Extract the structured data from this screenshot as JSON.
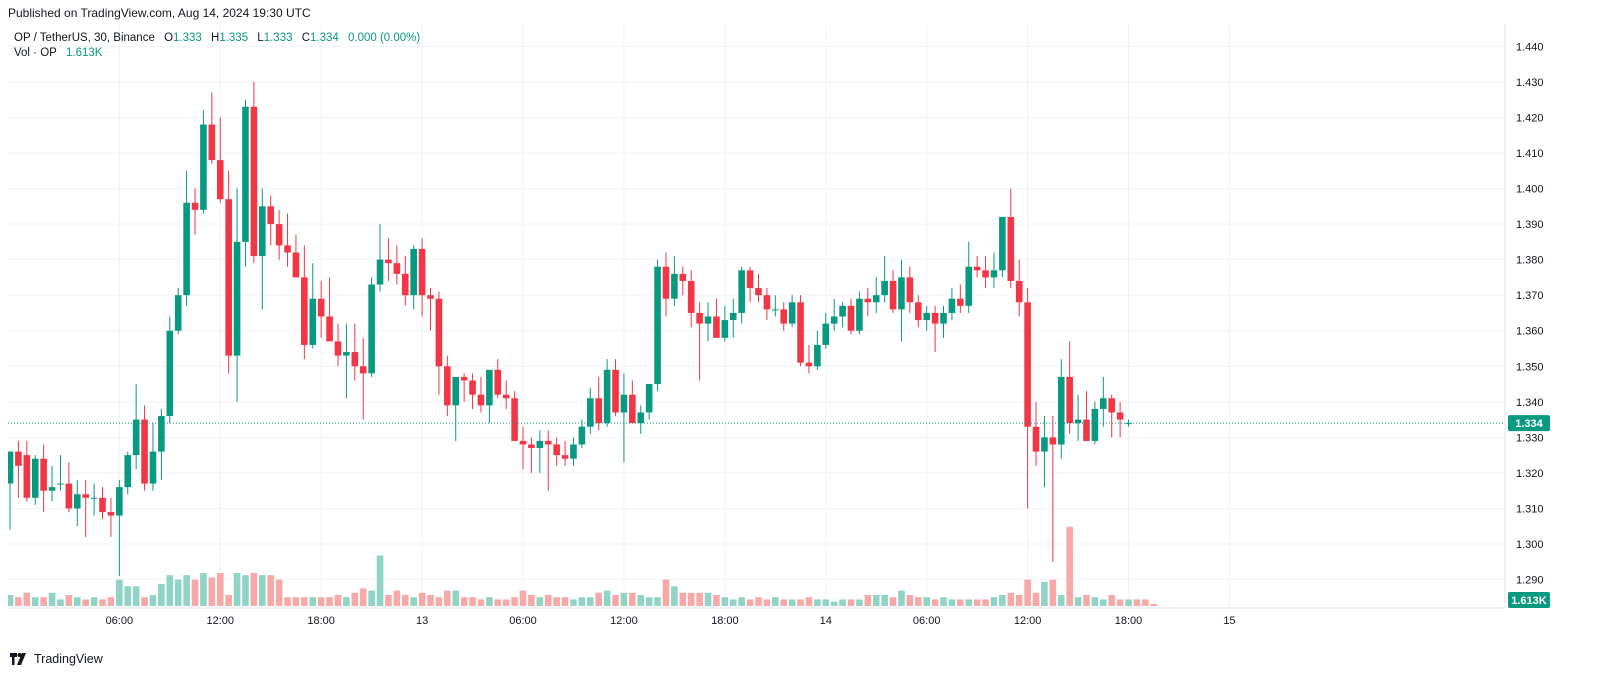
{
  "header": {
    "published_text": "Published on TradingView.com, Aug 14, 2024 19:30 UTC"
  },
  "legend": {
    "symbol_line": "OP / TetherUS, 30, Binance",
    "open_label": "O",
    "open": "1.333",
    "high_label": "H",
    "high": "1.335",
    "low_label": "L",
    "low": "1.333",
    "close_label": "C",
    "close": "1.334",
    "change": "0.000 (0.00%)",
    "volume_label": "Vol · OP",
    "volume": "1.613K"
  },
  "footer": {
    "brand": "TradingView"
  },
  "colors": {
    "up": "#089981",
    "down": "#f23645",
    "up_volume": "#8fd4c7",
    "down_volume": "#f7a9a7",
    "grid": "#f0f3fa",
    "axis_text": "#131722",
    "price_line": "#089981"
  },
  "chart_data": {
    "type": "candlestick",
    "interval": "30",
    "symbol": "OP / TetherUS",
    "exchange": "Binance",
    "ylim": [
      1.282,
      1.446
    ],
    "y_ticks": [
      "1.290",
      "1.300",
      "1.310",
      "1.320",
      "1.330",
      "1.340",
      "1.350",
      "1.360",
      "1.370",
      "1.380",
      "1.390",
      "1.400",
      "1.410",
      "1.420",
      "1.430",
      "1.440"
    ],
    "x_ticks": [
      {
        "bar": 13,
        "label": "06:00"
      },
      {
        "bar": 25,
        "label": "12:00"
      },
      {
        "bar": 37,
        "label": "18:00"
      },
      {
        "bar": 49,
        "label": "13"
      },
      {
        "bar": 61,
        "label": "06:00"
      },
      {
        "bar": 73,
        "label": "12:00"
      },
      {
        "bar": 85,
        "label": "18:00"
      },
      {
        "bar": 97,
        "label": "14"
      },
      {
        "bar": 109,
        "label": "06:00"
      },
      {
        "bar": 121,
        "label": "12:00"
      },
      {
        "bar": 133,
        "label": "18:00"
      },
      {
        "bar": 145,
        "label": "15"
      }
    ],
    "last_price": 1.334,
    "last_price_label": "1.334",
    "last_volume_label": "1.613K",
    "grid": true,
    "candles": [
      {
        "o": 1.317,
        "h": 1.325,
        "l": 1.304,
        "c": 1.326
      },
      {
        "o": 1.326,
        "h": 1.329,
        "l": 1.313,
        "c": 1.322
      },
      {
        "o": 1.325,
        "h": 1.329,
        "l": 1.312,
        "c": 1.313
      },
      {
        "o": 1.313,
        "h": 1.325,
        "l": 1.311,
        "c": 1.324
      },
      {
        "o": 1.324,
        "h": 1.328,
        "l": 1.309,
        "c": 1.315
      },
      {
        "o": 1.315,
        "h": 1.322,
        "l": 1.312,
        "c": 1.316
      },
      {
        "o": 1.317,
        "h": 1.325,
        "l": 1.315,
        "c": 1.317
      },
      {
        "o": 1.317,
        "h": 1.323,
        "l": 1.309,
        "c": 1.31
      },
      {
        "o": 1.31,
        "h": 1.318,
        "l": 1.305,
        "c": 1.314
      },
      {
        "o": 1.314,
        "h": 1.318,
        "l": 1.302,
        "c": 1.313
      },
      {
        "o": 1.313,
        "h": 1.317,
        "l": 1.308,
        "c": 1.313
      },
      {
        "o": 1.313,
        "h": 1.316,
        "l": 1.307,
        "c": 1.309
      },
      {
        "o": 1.309,
        "h": 1.313,
        "l": 1.302,
        "c": 1.308
      },
      {
        "o": 1.308,
        "h": 1.318,
        "l": 1.291,
        "c": 1.316
      },
      {
        "o": 1.316,
        "h": 1.326,
        "l": 1.314,
        "c": 1.325
      },
      {
        "o": 1.325,
        "h": 1.345,
        "l": 1.321,
        "c": 1.335
      },
      {
        "o": 1.335,
        "h": 1.339,
        "l": 1.315,
        "c": 1.317
      },
      {
        "o": 1.317,
        "h": 1.334,
        "l": 1.315,
        "c": 1.326
      },
      {
        "o": 1.326,
        "h": 1.338,
        "l": 1.318,
        "c": 1.336
      },
      {
        "o": 1.336,
        "h": 1.364,
        "l": 1.334,
        "c": 1.36
      },
      {
        "o": 1.36,
        "h": 1.372,
        "l": 1.359,
        "c": 1.37
      },
      {
        "o": 1.37,
        "h": 1.405,
        "l": 1.367,
        "c": 1.396
      },
      {
        "o": 1.396,
        "h": 1.4,
        "l": 1.387,
        "c": 1.394
      },
      {
        "o": 1.394,
        "h": 1.422,
        "l": 1.393,
        "c": 1.418
      },
      {
        "o": 1.418,
        "h": 1.427,
        "l": 1.407,
        "c": 1.408
      },
      {
        "o": 1.408,
        "h": 1.42,
        "l": 1.396,
        "c": 1.397
      },
      {
        "o": 1.397,
        "h": 1.405,
        "l": 1.348,
        "c": 1.353
      },
      {
        "o": 1.353,
        "h": 1.4,
        "l": 1.34,
        "c": 1.385
      },
      {
        "o": 1.385,
        "h": 1.425,
        "l": 1.378,
        "c": 1.423
      },
      {
        "o": 1.423,
        "h": 1.43,
        "l": 1.379,
        "c": 1.381
      },
      {
        "o": 1.381,
        "h": 1.4,
        "l": 1.366,
        "c": 1.395
      },
      {
        "o": 1.395,
        "h": 1.398,
        "l": 1.384,
        "c": 1.39
      },
      {
        "o": 1.39,
        "h": 1.394,
        "l": 1.38,
        "c": 1.384
      },
      {
        "o": 1.384,
        "h": 1.393,
        "l": 1.378,
        "c": 1.382
      },
      {
        "o": 1.382,
        "h": 1.387,
        "l": 1.376,
        "c": 1.375
      },
      {
        "o": 1.375,
        "h": 1.384,
        "l": 1.352,
        "c": 1.356
      },
      {
        "o": 1.356,
        "h": 1.379,
        "l": 1.355,
        "c": 1.369
      },
      {
        "o": 1.369,
        "h": 1.374,
        "l": 1.358,
        "c": 1.364
      },
      {
        "o": 1.364,
        "h": 1.375,
        "l": 1.357,
        "c": 1.357
      },
      {
        "o": 1.357,
        "h": 1.362,
        "l": 1.35,
        "c": 1.353
      },
      {
        "o": 1.353,
        "h": 1.362,
        "l": 1.341,
        "c": 1.354
      },
      {
        "o": 1.354,
        "h": 1.362,
        "l": 1.346,
        "c": 1.35
      },
      {
        "o": 1.35,
        "h": 1.358,
        "l": 1.335,
        "c": 1.348
      },
      {
        "o": 1.348,
        "h": 1.375,
        "l": 1.347,
        "c": 1.373
      },
      {
        "o": 1.373,
        "h": 1.39,
        "l": 1.371,
        "c": 1.38
      },
      {
        "o": 1.38,
        "h": 1.386,
        "l": 1.374,
        "c": 1.379
      },
      {
        "o": 1.379,
        "h": 1.384,
        "l": 1.373,
        "c": 1.376
      },
      {
        "o": 1.376,
        "h": 1.381,
        "l": 1.367,
        "c": 1.37
      },
      {
        "o": 1.37,
        "h": 1.384,
        "l": 1.366,
        "c": 1.383
      },
      {
        "o": 1.383,
        "h": 1.386,
        "l": 1.364,
        "c": 1.37
      },
      {
        "o": 1.37,
        "h": 1.372,
        "l": 1.36,
        "c": 1.369
      },
      {
        "o": 1.369,
        "h": 1.371,
        "l": 1.342,
        "c": 1.35
      },
      {
        "o": 1.35,
        "h": 1.353,
        "l": 1.336,
        "c": 1.339
      },
      {
        "o": 1.339,
        "h": 1.347,
        "l": 1.329,
        "c": 1.347
      },
      {
        "o": 1.347,
        "h": 1.348,
        "l": 1.34,
        "c": 1.346
      },
      {
        "o": 1.346,
        "h": 1.348,
        "l": 1.338,
        "c": 1.342
      },
      {
        "o": 1.342,
        "h": 1.347,
        "l": 1.337,
        "c": 1.339
      },
      {
        "o": 1.339,
        "h": 1.348,
        "l": 1.334,
        "c": 1.349
      },
      {
        "o": 1.349,
        "h": 1.352,
        "l": 1.341,
        "c": 1.342
      },
      {
        "o": 1.342,
        "h": 1.346,
        "l": 1.338,
        "c": 1.341
      },
      {
        "o": 1.341,
        "h": 1.343,
        "l": 1.329,
        "c": 1.329
      },
      {
        "o": 1.329,
        "h": 1.333,
        "l": 1.321,
        "c": 1.328
      },
      {
        "o": 1.328,
        "h": 1.33,
        "l": 1.32,
        "c": 1.327
      },
      {
        "o": 1.327,
        "h": 1.332,
        "l": 1.32,
        "c": 1.329
      },
      {
        "o": 1.329,
        "h": 1.332,
        "l": 1.315,
        "c": 1.328
      },
      {
        "o": 1.328,
        "h": 1.33,
        "l": 1.322,
        "c": 1.325
      },
      {
        "o": 1.325,
        "h": 1.329,
        "l": 1.322,
        "c": 1.324
      },
      {
        "o": 1.324,
        "h": 1.33,
        "l": 1.322,
        "c": 1.328
      },
      {
        "o": 1.328,
        "h": 1.335,
        "l": 1.327,
        "c": 1.333
      },
      {
        "o": 1.333,
        "h": 1.344,
        "l": 1.331,
        "c": 1.341
      },
      {
        "o": 1.341,
        "h": 1.347,
        "l": 1.332,
        "c": 1.334
      },
      {
        "o": 1.334,
        "h": 1.352,
        "l": 1.333,
        "c": 1.349
      },
      {
        "o": 1.349,
        "h": 1.352,
        "l": 1.336,
        "c": 1.337
      },
      {
        "o": 1.337,
        "h": 1.348,
        "l": 1.323,
        "c": 1.342
      },
      {
        "o": 1.342,
        "h": 1.346,
        "l": 1.335,
        "c": 1.334
      },
      {
        "o": 1.334,
        "h": 1.339,
        "l": 1.331,
        "c": 1.337
      },
      {
        "o": 1.337,
        "h": 1.345,
        "l": 1.335,
        "c": 1.345
      },
      {
        "o": 1.345,
        "h": 1.38,
        "l": 1.343,
        "c": 1.378
      },
      {
        "o": 1.378,
        "h": 1.382,
        "l": 1.364,
        "c": 1.369
      },
      {
        "o": 1.369,
        "h": 1.381,
        "l": 1.367,
        "c": 1.376
      },
      {
        "o": 1.376,
        "h": 1.378,
        "l": 1.37,
        "c": 1.374
      },
      {
        "o": 1.374,
        "h": 1.377,
        "l": 1.361,
        "c": 1.365
      },
      {
        "o": 1.365,
        "h": 1.368,
        "l": 1.346,
        "c": 1.362
      },
      {
        "o": 1.362,
        "h": 1.368,
        "l": 1.357,
        "c": 1.364
      },
      {
        "o": 1.364,
        "h": 1.369,
        "l": 1.358,
        "c": 1.358
      },
      {
        "o": 1.358,
        "h": 1.367,
        "l": 1.357,
        "c": 1.363
      },
      {
        "o": 1.363,
        "h": 1.369,
        "l": 1.358,
        "c": 1.365
      },
      {
        "o": 1.365,
        "h": 1.378,
        "l": 1.362,
        "c": 1.377
      },
      {
        "o": 1.377,
        "h": 1.378,
        "l": 1.368,
        "c": 1.372
      },
      {
        "o": 1.372,
        "h": 1.376,
        "l": 1.368,
        "c": 1.37
      },
      {
        "o": 1.37,
        "h": 1.372,
        "l": 1.363,
        "c": 1.366
      },
      {
        "o": 1.366,
        "h": 1.37,
        "l": 1.364,
        "c": 1.366
      },
      {
        "o": 1.366,
        "h": 1.368,
        "l": 1.36,
        "c": 1.362
      },
      {
        "o": 1.362,
        "h": 1.37,
        "l": 1.361,
        "c": 1.368
      },
      {
        "o": 1.368,
        "h": 1.37,
        "l": 1.35,
        "c": 1.351
      },
      {
        "o": 1.351,
        "h": 1.356,
        "l": 1.348,
        "c": 1.35
      },
      {
        "o": 1.35,
        "h": 1.36,
        "l": 1.349,
        "c": 1.356
      },
      {
        "o": 1.356,
        "h": 1.365,
        "l": 1.355,
        "c": 1.362
      },
      {
        "o": 1.362,
        "h": 1.369,
        "l": 1.36,
        "c": 1.364
      },
      {
        "o": 1.364,
        "h": 1.368,
        "l": 1.361,
        "c": 1.367
      },
      {
        "o": 1.367,
        "h": 1.369,
        "l": 1.359,
        "c": 1.36
      },
      {
        "o": 1.36,
        "h": 1.371,
        "l": 1.359,
        "c": 1.369
      },
      {
        "o": 1.369,
        "h": 1.372,
        "l": 1.364,
        "c": 1.368
      },
      {
        "o": 1.368,
        "h": 1.375,
        "l": 1.365,
        "c": 1.37
      },
      {
        "o": 1.37,
        "h": 1.381,
        "l": 1.368,
        "c": 1.374
      },
      {
        "o": 1.374,
        "h": 1.377,
        "l": 1.365,
        "c": 1.366
      },
      {
        "o": 1.366,
        "h": 1.38,
        "l": 1.357,
        "c": 1.375
      },
      {
        "o": 1.375,
        "h": 1.378,
        "l": 1.365,
        "c": 1.368
      },
      {
        "o": 1.368,
        "h": 1.37,
        "l": 1.361,
        "c": 1.363
      },
      {
        "o": 1.363,
        "h": 1.367,
        "l": 1.36,
        "c": 1.365
      },
      {
        "o": 1.365,
        "h": 1.367,
        "l": 1.354,
        "c": 1.362
      },
      {
        "o": 1.362,
        "h": 1.367,
        "l": 1.358,
        "c": 1.365
      },
      {
        "o": 1.365,
        "h": 1.372,
        "l": 1.363,
        "c": 1.369
      },
      {
        "o": 1.369,
        "h": 1.373,
        "l": 1.365,
        "c": 1.367
      },
      {
        "o": 1.367,
        "h": 1.385,
        "l": 1.365,
        "c": 1.378
      },
      {
        "o": 1.378,
        "h": 1.381,
        "l": 1.375,
        "c": 1.377
      },
      {
        "o": 1.377,
        "h": 1.381,
        "l": 1.372,
        "c": 1.375
      },
      {
        "o": 1.375,
        "h": 1.382,
        "l": 1.372,
        "c": 1.377
      },
      {
        "o": 1.377,
        "h": 1.391,
        "l": 1.375,
        "c": 1.392
      },
      {
        "o": 1.392,
        "h": 1.4,
        "l": 1.372,
        "c": 1.374
      },
      {
        "o": 1.374,
        "h": 1.38,
        "l": 1.364,
        "c": 1.368
      },
      {
        "o": 1.368,
        "h": 1.372,
        "l": 1.31,
        "c": 1.333
      },
      {
        "o": 1.333,
        "h": 1.34,
        "l": 1.322,
        "c": 1.326
      },
      {
        "o": 1.326,
        "h": 1.336,
        "l": 1.316,
        "c": 1.33
      },
      {
        "o": 1.33,
        "h": 1.336,
        "l": 1.295,
        "c": 1.328
      },
      {
        "o": 1.328,
        "h": 1.352,
        "l": 1.324,
        "c": 1.347
      },
      {
        "o": 1.347,
        "h": 1.357,
        "l": 1.331,
        "c": 1.334
      },
      {
        "o": 1.334,
        "h": 1.342,
        "l": 1.329,
        "c": 1.335
      },
      {
        "o": 1.335,
        "h": 1.343,
        "l": 1.33,
        "c": 1.329
      },
      {
        "o": 1.329,
        "h": 1.34,
        "l": 1.328,
        "c": 1.338
      },
      {
        "o": 1.338,
        "h": 1.347,
        "l": 1.333,
        "c": 1.341
      },
      {
        "o": 1.341,
        "h": 1.342,
        "l": 1.33,
        "c": 1.337
      },
      {
        "o": 1.337,
        "h": 1.34,
        "l": 1.33,
        "c": 1.335
      },
      {
        "o": 1.334,
        "h": 1.335,
        "l": 1.333,
        "c": 1.334
      }
    ],
    "volume": [
      5,
      4,
      6,
      4,
      4,
      6,
      3,
      5,
      4,
      3,
      4,
      3,
      4,
      12,
      9,
      9,
      4,
      5,
      10,
      14,
      12,
      14,
      12,
      15,
      13,
      15,
      5,
      15,
      14,
      15,
      14,
      14,
      12,
      4,
      4,
      4,
      4,
      4,
      4,
      5,
      4,
      6,
      8,
      7,
      23,
      5,
      7,
      5,
      4,
      6,
      5,
      4,
      7,
      7,
      4,
      4,
      3,
      4,
      3,
      3,
      4,
      7,
      5,
      4,
      5,
      4,
      4,
      3,
      4,
      4,
      6,
      7,
      5,
      6,
      6,
      5,
      4,
      4,
      12,
      9,
      6,
      6,
      6,
      6,
      5,
      4,
      3,
      4,
      3,
      4,
      3,
      4,
      3,
      3,
      3,
      4,
      3,
      3,
      2,
      3,
      3,
      3,
      5,
      5,
      5,
      4,
      7,
      5,
      4,
      4,
      3,
      4,
      3,
      3,
      3,
      3,
      3,
      4,
      5,
      6,
      5,
      12,
      6,
      11,
      12,
      5,
      36,
      4,
      5,
      4,
      3,
      5,
      3,
      3,
      3,
      3,
      1
    ]
  }
}
